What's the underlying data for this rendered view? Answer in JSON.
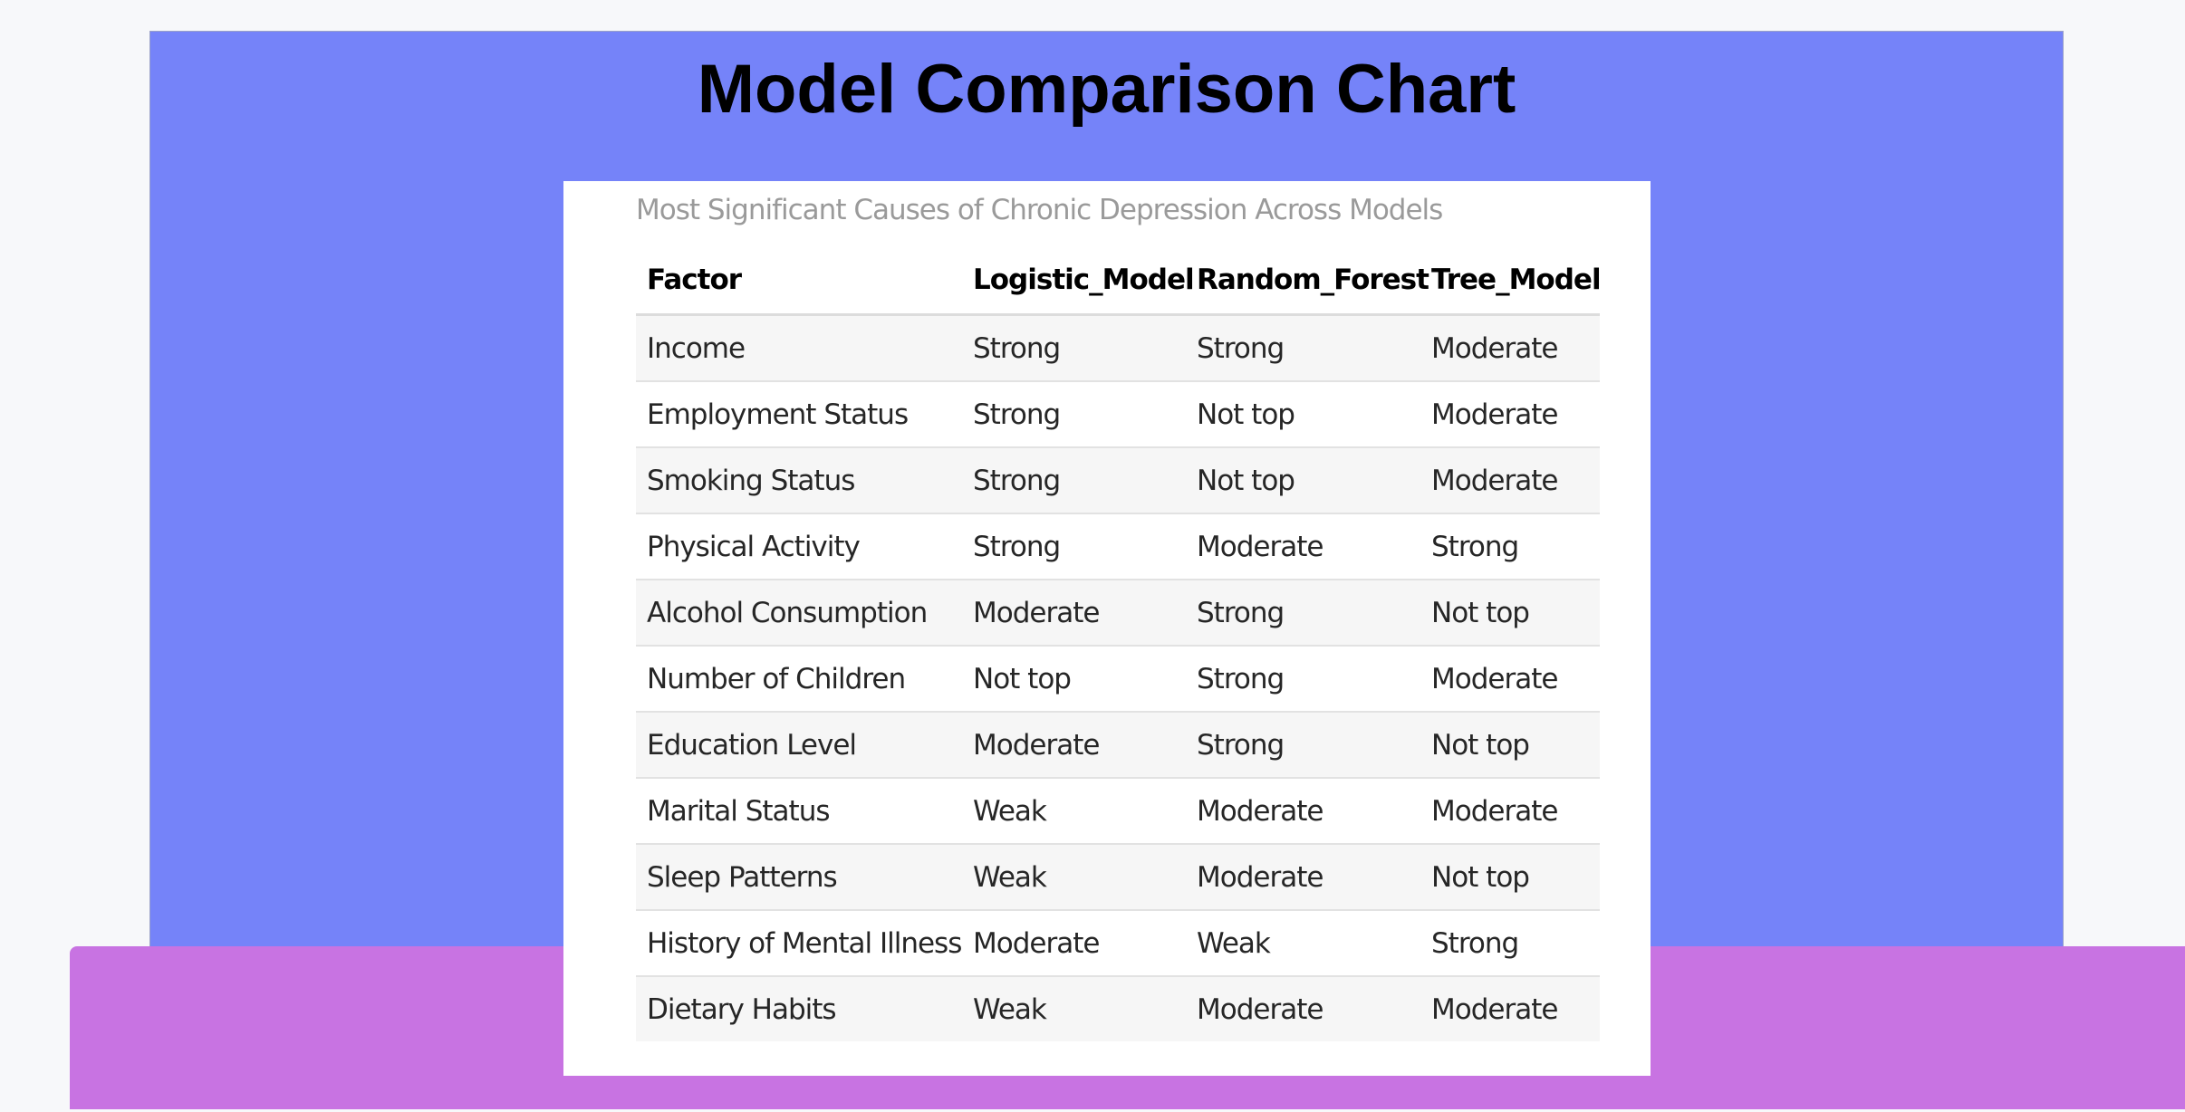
{
  "page": {
    "title": "Model Comparison Chart"
  },
  "table": {
    "caption": "Most Significant Causes of Chronic Depression Across Models",
    "headers": [
      "Factor",
      "Logistic_Model",
      "Random_Forest",
      "Tree_Model"
    ],
    "rows": [
      [
        "Income",
        "Strong",
        "Strong",
        "Moderate"
      ],
      [
        "Employment Status",
        "Strong",
        "Not top",
        "Moderate"
      ],
      [
        "Smoking Status",
        "Strong",
        "Not top",
        "Moderate"
      ],
      [
        "Physical Activity",
        "Strong",
        "Moderate",
        "Strong"
      ],
      [
        "Alcohol Consumption",
        "Moderate",
        "Strong",
        "Not top"
      ],
      [
        "Number of Children",
        "Not top",
        "Strong",
        "Moderate"
      ],
      [
        "Education Level",
        "Moderate",
        "Strong",
        "Not top"
      ],
      [
        "Marital Status",
        "Weak",
        "Moderate",
        "Moderate"
      ],
      [
        "Sleep Patterns",
        "Weak",
        "Moderate",
        "Not top"
      ],
      [
        "History of Mental Illness",
        "Moderate",
        "Weak",
        "Strong"
      ],
      [
        "Dietary Habits",
        "Weak",
        "Moderate",
        "Moderate"
      ]
    ]
  },
  "colors": {
    "hero_background": "#7583f9",
    "footer_band": "#c873e2",
    "card_background": "#ffffff",
    "stripe_row": "#f6f6f6"
  }
}
